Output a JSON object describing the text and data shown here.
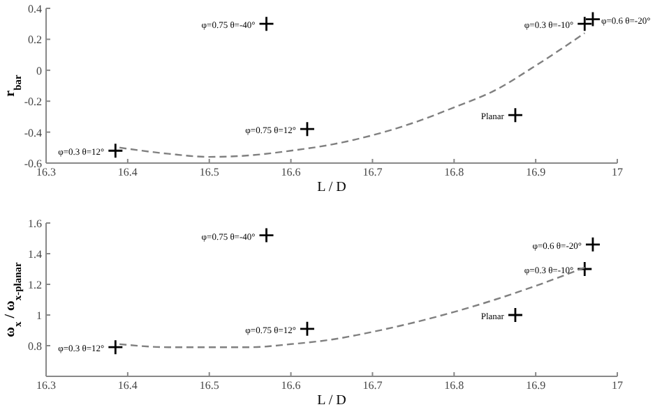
{
  "chart_data": [
    {
      "type": "scatter",
      "xlabel": "L / D",
      "ylabel": "r$_{bar}$",
      "xlim": [
        16.3,
        17
      ],
      "xticks": [
        16.3,
        16.4,
        16.5,
        16.6,
        16.7,
        16.8,
        16.9,
        17
      ],
      "ylim": [
        -0.6,
        0.4
      ],
      "yticks": [
        {
          "value": -0.6,
          "label": "-0.6"
        },
        {
          "value": -0.4,
          "label": "-0.4"
        },
        {
          "value": -0.2,
          "label": "-0.2"
        },
        0,
        {
          "value": 0.2,
          "label": "0.2"
        },
        {
          "value": 0.4,
          "label": "0.4"
        }
      ],
      "marker": "cross",
      "grid": false,
      "series": [
        {
          "type": "scatter",
          "color": "#000000",
          "x": [
            16.385,
            16.57,
            16.62,
            16.875,
            16.96,
            16.97
          ],
          "values": [
            -0.52,
            0.3,
            -0.38,
            -0.29,
            0.3,
            0.33
          ]
        },
        {
          "type": "line",
          "color": "#808080",
          "line_style": "dashed",
          "marker": "none",
          "x": [
            16.39,
            16.45,
            16.5,
            16.55,
            16.6,
            16.65,
            16.7,
            16.75,
            16.8,
            16.85,
            16.9,
            16.96
          ],
          "values": [
            -0.5,
            -0.54,
            -0.56,
            -0.55,
            -0.52,
            -0.48,
            -0.42,
            -0.34,
            -0.24,
            -0.13,
            0.03,
            0.24
          ]
        }
      ],
      "annotations": [
        {
          "text": "φ=0.3 θ=12°",
          "x": 16.385,
          "y": -0.52
        },
        {
          "text": "φ=0.75 θ=-40°",
          "x": 16.57,
          "y": 0.3
        },
        {
          "text": "φ=0.75 θ=12°",
          "x": 16.62,
          "y": -0.38
        },
        {
          "text": "Planar",
          "x": 16.875,
          "y": -0.29
        },
        {
          "text": "φ=0.3 θ=-10°",
          "x": 16.96,
          "y": 0.3
        },
        {
          "text": "φ=0.6 θ=-20°",
          "x": 16.97,
          "y": 0.33
        }
      ]
    },
    {
      "type": "scatter",
      "xlabel": "L / D",
      "ylabel": "ω$_{x}$ / ω$_{x-planar}$",
      "xlim": [
        16.3,
        17
      ],
      "xticks": [
        16.3,
        16.4,
        16.5,
        16.6,
        16.7,
        16.8,
        16.9,
        17
      ],
      "ylim": [
        0.6,
        1.6
      ],
      "yticks": [
        {
          "value": 0.6,
          "label": null
        },
        {
          "value": 0.8,
          "label": "0.8"
        },
        1,
        {
          "value": 1.2,
          "label": "1.2"
        },
        {
          "value": 1.4,
          "label": "1.4"
        },
        {
          "value": 1.6,
          "label": "1.6"
        }
      ],
      "marker": "cross",
      "grid": false,
      "series": [
        {
          "type": "scatter",
          "color": "#000000",
          "x": [
            16.385,
            16.57,
            16.62,
            16.875,
            16.96,
            16.97
          ],
          "values": [
            0.79,
            1.52,
            0.91,
            1.0,
            1.3,
            1.46
          ]
        },
        {
          "type": "line",
          "color": "#808080",
          "line_style": "dashed",
          "marker": "none",
          "x": [
            16.39,
            16.45,
            16.5,
            16.55,
            16.6,
            16.65,
            16.7,
            16.75,
            16.8,
            16.85,
            16.9,
            16.96
          ],
          "values": [
            0.81,
            0.79,
            0.79,
            0.79,
            0.81,
            0.84,
            0.89,
            0.95,
            1.02,
            1.1,
            1.19,
            1.31
          ]
        }
      ],
      "annotations": [
        {
          "text": "φ=0.3 θ=12°",
          "x": 16.385,
          "y": 0.79
        },
        {
          "text": "φ=0.75 θ=-40°",
          "x": 16.57,
          "y": 1.52
        },
        {
          "text": "φ=0.75 θ=12°",
          "x": 16.62,
          "y": 0.91
        },
        {
          "text": "Planar",
          "x": 16.875,
          "y": 1.0
        },
        {
          "text": "φ=0.3 θ=-10°",
          "x": 16.96,
          "y": 1.3
        },
        {
          "text": "φ=0.6 θ=-20°",
          "x": 16.97,
          "y": 1.46
        }
      ]
    }
  ]
}
